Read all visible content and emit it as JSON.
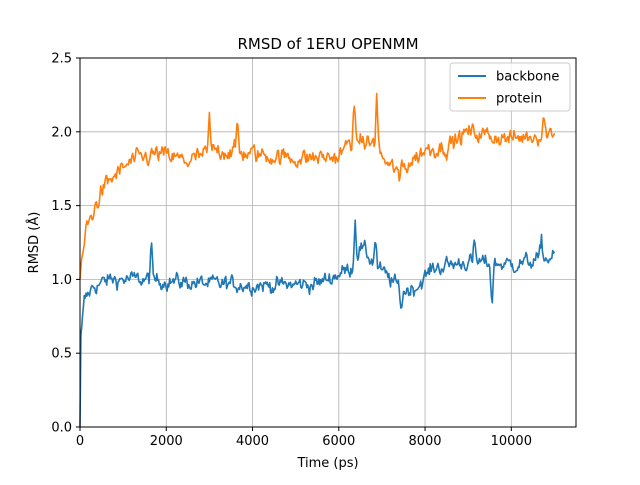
{
  "chart_data": {
    "type": "line",
    "title": "RMSD of 1ERU OPENMM",
    "xlabel": "Time (ps)",
    "ylabel": "RMSD (Å)",
    "xlim": [
      0,
      11500
    ],
    "ylim": [
      0,
      2.5
    ],
    "xticks": [
      0,
      2000,
      4000,
      6000,
      8000,
      10000
    ],
    "yticks": [
      0.0,
      0.5,
      1.0,
      1.5,
      2.0,
      2.5
    ],
    "xtick_labels": [
      "0",
      "2000",
      "4000",
      "6000",
      "8000",
      "10000"
    ],
    "ytick_labels": [
      "0.0",
      "0.5",
      "1.0",
      "1.5",
      "2.0",
      "2.5"
    ],
    "grid": true,
    "legend_position": "top-right",
    "x_range": [
      0,
      11000
    ],
    "series": [
      {
        "name": "backbone",
        "color": "#1f77b4",
        "trend": [
          [
            0,
            0.0
          ],
          [
            20,
            0.62
          ],
          [
            100,
            0.85
          ],
          [
            300,
            0.95
          ],
          [
            700,
            1.0
          ],
          [
            1500,
            1.0
          ],
          [
            3000,
            0.97
          ],
          [
            4500,
            0.96
          ],
          [
            5500,
            0.97
          ],
          [
            6300,
            1.08
          ],
          [
            6500,
            1.22
          ],
          [
            7000,
            1.05
          ],
          [
            7500,
            0.92
          ],
          [
            7800,
            0.95
          ],
          [
            8200,
            1.08
          ],
          [
            9000,
            1.12
          ],
          [
            10000,
            1.1
          ],
          [
            11000,
            1.15
          ]
        ],
        "noise": 0.08,
        "spikes": [
          [
            1650,
            1.24
          ],
          [
            6380,
            1.41
          ],
          [
            6850,
            1.3
          ],
          [
            7450,
            0.8
          ],
          [
            9150,
            1.25
          ],
          [
            9550,
            0.82
          ],
          [
            10700,
            1.28
          ]
        ]
      },
      {
        "name": "protein",
        "color": "#ff7f0e",
        "trend": [
          [
            0,
            1.0
          ],
          [
            30,
            1.12
          ],
          [
            150,
            1.35
          ],
          [
            300,
            1.45
          ],
          [
            500,
            1.6
          ],
          [
            800,
            1.7
          ],
          [
            1200,
            1.8
          ],
          [
            1800,
            1.85
          ],
          [
            2500,
            1.8
          ],
          [
            3200,
            1.88
          ],
          [
            4000,
            1.85
          ],
          [
            5000,
            1.82
          ],
          [
            6000,
            1.83
          ],
          [
            6300,
            1.95
          ],
          [
            6800,
            1.92
          ],
          [
            7200,
            1.75
          ],
          [
            7600,
            1.78
          ],
          [
            8000,
            1.88
          ],
          [
            8500,
            1.9
          ],
          [
            9000,
            2.0
          ],
          [
            10000,
            1.95
          ],
          [
            11000,
            2.0
          ]
        ],
        "noise": 0.09,
        "spikes": [
          [
            3000,
            2.08
          ],
          [
            3650,
            2.07
          ],
          [
            6350,
            2.16
          ],
          [
            6880,
            2.26
          ],
          [
            7400,
            1.62
          ],
          [
            10750,
            2.12
          ]
        ]
      }
    ]
  }
}
